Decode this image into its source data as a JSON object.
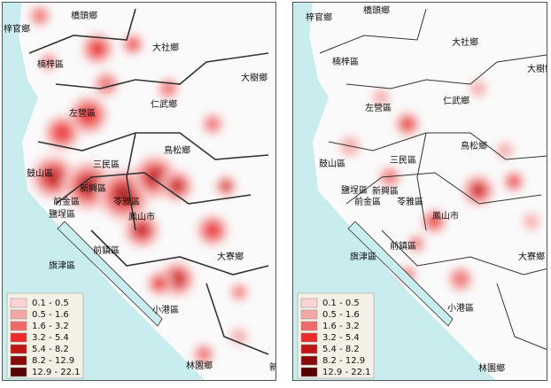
{
  "panels": [
    {
      "labels": [
        "梓官鄉",
        "橋頭鄉",
        "楠梓區",
        "大社鄉",
        "大樹鄉",
        "仁武鄉",
        "左營區",
        "鳥松鄉",
        "鼓山區",
        "三民區",
        "新興區",
        "前金區",
        "苓雅區",
        "鹽埕區",
        "鳳山市",
        "前鎮區",
        "大寮鄉",
        "旗津區",
        "小港區",
        "林園鄉",
        "新"
      ],
      "legend": [
        {
          "label": "0.1 - 0.5",
          "color": "#fad4d4"
        },
        {
          "label": "0.5 - 1.6",
          "color": "#f5a6a6"
        },
        {
          "label": "1.6 - 3.2",
          "color": "#f06a6a"
        },
        {
          "label": "3.2 - 5.4",
          "color": "#ec2b2b"
        },
        {
          "label": "5.4 - 8.2",
          "color": "#c01616"
        },
        {
          "label": "8.2 - 12.9",
          "color": "#8a0a0a"
        },
        {
          "label": "12.9 - 22.1",
          "color": "#560000"
        }
      ]
    },
    {
      "labels": [
        "梓官鄉",
        "橋頭鄉",
        "楠梓區",
        "大社鄉",
        "大樹鄉",
        "仁武鄉",
        "左營區",
        "鳥松鄉",
        "鼓山區",
        "三民區",
        "新興區",
        "前金區",
        "苓雅區",
        "鹽埕區",
        "鳳山市",
        "前鎮區",
        "大寮鄉",
        "旗津區",
        "小港區",
        "林園鄉"
      ],
      "legend": [
        {
          "label": "0.1 - 0.5",
          "color": "#fad4d4"
        },
        {
          "label": "0.5 - 1.6",
          "color": "#f5a6a6"
        },
        {
          "label": "1.6 - 3.2",
          "color": "#f06a6a"
        },
        {
          "label": "3.2 - 5.4",
          "color": "#ec2b2b"
        },
        {
          "label": "5.4 - 8.2",
          "color": "#c01616"
        },
        {
          "label": "8.2 - 12.9",
          "color": "#8a0a0a"
        },
        {
          "label": "12.9 - 22.1",
          "color": "#560000"
        }
      ]
    }
  ]
}
